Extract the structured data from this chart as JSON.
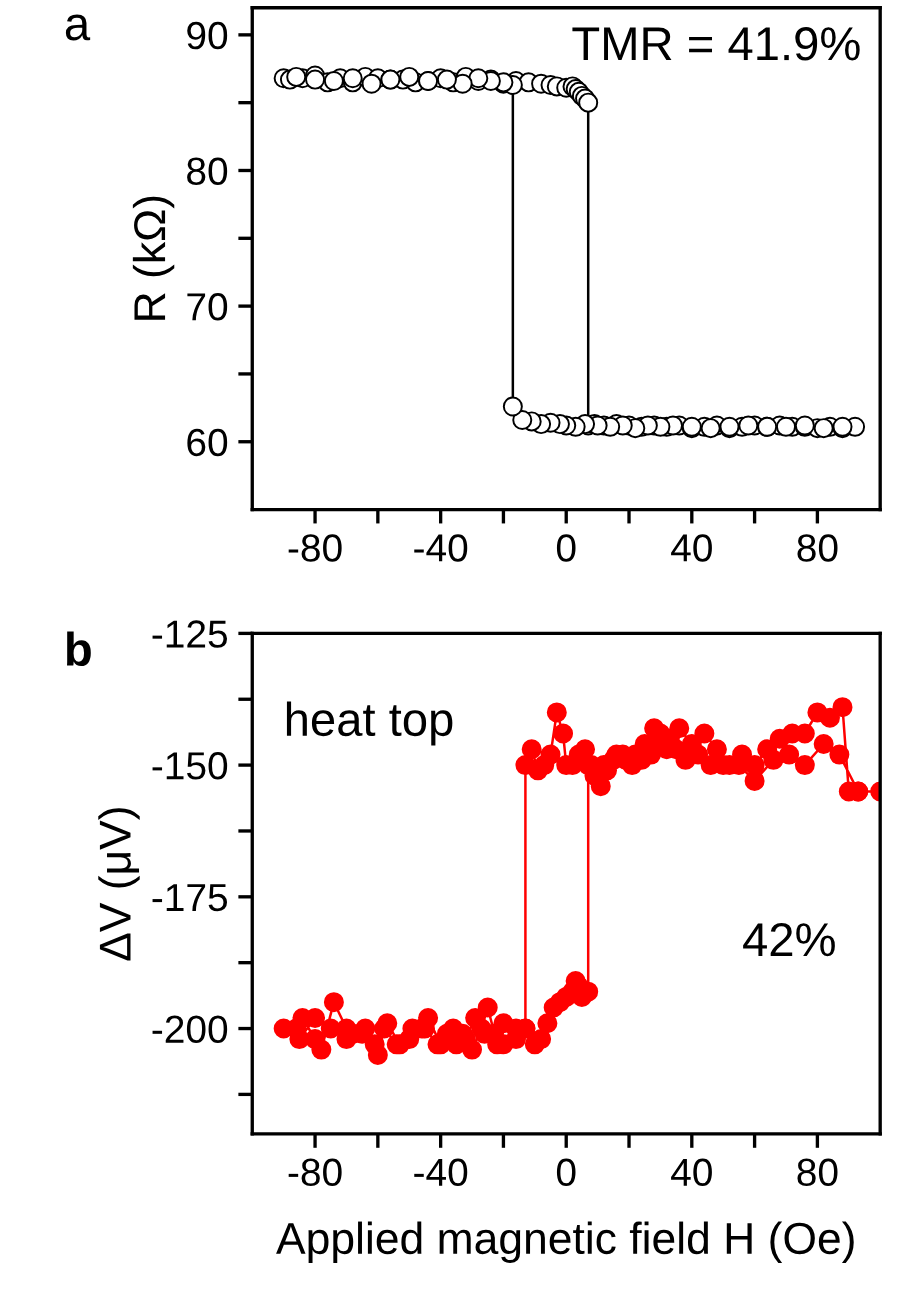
{
  "chart_data": [
    {
      "type": "line",
      "title": "a",
      "ylabel": "R (kΩ)",
      "annotations": [
        "TMR = 41.9%"
      ],
      "marker": "circle",
      "line_style": "solid",
      "grid": false,
      "legend": false,
      "xlim": [
        -100,
        100
      ],
      "ylim": [
        55,
        92
      ],
      "xticks": [
        -80,
        {
          "value": -60,
          "label": null
        },
        -40,
        {
          "value": -20,
          "label": null
        },
        0,
        {
          "value": 20,
          "label": null
        },
        40,
        {
          "value": 60,
          "label": null
        },
        80
      ],
      "yticks": [
        60,
        {
          "value": 65,
          "label": null
        },
        70,
        {
          "value": 75,
          "label": null
        },
        80,
        {
          "value": 85,
          "label": null
        },
        90
      ],
      "series": [
        {
          "color": "#000000",
          "x": [
            -90,
            -88,
            -84,
            -80,
            -76,
            -72,
            -68,
            -64,
            -60,
            -56,
            -52,
            -48,
            -44,
            -40,
            -36,
            -32,
            -28,
            -24,
            -20,
            -16,
            -12,
            -8,
            -5,
            -3,
            0,
            2,
            3,
            4,
            5,
            6,
            7,
            7,
            9,
            12,
            16,
            20,
            24,
            28,
            32,
            36,
            40,
            44,
            48,
            52,
            56,
            60,
            64,
            68,
            72,
            76,
            80,
            84,
            88,
            92,
            88,
            82,
            76,
            70,
            64,
            58,
            52,
            46,
            40,
            34,
            30,
            26,
            22,
            18,
            14,
            10,
            6,
            3,
            0,
            -2,
            -5,
            -8,
            -11,
            -14,
            -17,
            -17,
            -20,
            -24,
            -28,
            -33,
            -38,
            -44,
            -50,
            -56,
            -62,
            -68,
            -74,
            -80,
            -86
          ],
          "values": [
            86.8,
            86.7,
            86.8,
            87.0,
            86.5,
            86.8,
            86.5,
            86.9,
            86.8,
            86.7,
            86.7,
            86.5,
            86.6,
            86.8,
            86.5,
            86.9,
            86.6,
            86.7,
            86.4,
            86.6,
            86.5,
            86.4,
            86.3,
            86.2,
            86.1,
            86.2,
            86.0,
            85.8,
            85.5,
            85.3,
            85.0,
            61.2,
            61.3,
            61.2,
            61.3,
            61.2,
            61.1,
            61.2,
            61.1,
            61.2,
            61.0,
            61.1,
            61.2,
            61.0,
            61.1,
            61.2,
            61.1,
            61.2,
            61.1,
            61.1,
            61.0,
            61.1,
            61.0,
            61.1,
            61.1,
            61.0,
            61.2,
            61.1,
            61.1,
            61.2,
            61.1,
            61.0,
            61.1,
            61.2,
            61.1,
            61.2,
            61.0,
            61.2,
            61.1,
            61.2,
            61.3,
            61.1,
            61.2,
            61.3,
            61.4,
            61.3,
            61.5,
            61.6,
            62.6,
            86.3,
            86.5,
            86.6,
            86.8,
            86.4,
            86.7,
            86.6,
            86.9,
            86.7,
            86.4,
            86.8,
            86.6,
            86.7,
            86.9
          ]
        }
      ]
    },
    {
      "type": "line",
      "title": "b",
      "ylabel": "ΔV (μV)",
      "xlabel": "Applied magnetic field H (Oe)",
      "annotations": [
        "heat top",
        "42%"
      ],
      "marker": "circle",
      "line_style": "solid",
      "grid": false,
      "legend": false,
      "xlim": [
        -100,
        100
      ],
      "ylim": [
        -220,
        -125
      ],
      "xticks": [
        -80,
        {
          "value": -60,
          "label": null
        },
        -40,
        {
          "value": -20,
          "label": null
        },
        0,
        {
          "value": 20,
          "label": null
        },
        40,
        {
          "value": 60,
          "label": null
        },
        80
      ],
      "yticks": [
        -125,
        {
          "value": -137.5,
          "label": null
        },
        -150,
        {
          "value": -162.5,
          "label": null
        },
        -175,
        {
          "value": -187.5,
          "label": null
        },
        -200,
        {
          "value": -212.5,
          "label": null
        }
      ],
      "series": [
        {
          "color": "#ff0000",
          "x": [
            -90,
            -86,
            -84,
            -80,
            -78,
            -74,
            -70,
            -68,
            -64,
            -60,
            -58,
            -54,
            -50,
            -46,
            -44,
            -40,
            -36,
            -33,
            -30,
            -27,
            -25,
            -22,
            -20,
            -16,
            -13,
            -10,
            -8,
            -6,
            -4,
            -2,
            0,
            2,
            3,
            4,
            5,
            6,
            7,
            7,
            9,
            11,
            13,
            16,
            19,
            22,
            25,
            28,
            30,
            33,
            36,
            40,
            44,
            48,
            52,
            56,
            60,
            64,
            68,
            72,
            76,
            80,
            84,
            88,
            90,
            93,
            100,
            93,
            87,
            82,
            76,
            71,
            66,
            60,
            55,
            50,
            46,
            42,
            38,
            35,
            32,
            29,
            27,
            24,
            21,
            18,
            15,
            12,
            10,
            8,
            6,
            4,
            2,
            0,
            -1,
            -3,
            -5,
            -7,
            -9,
            -11,
            -13,
            -13,
            -16,
            -20,
            -23,
            -26,
            -29,
            -32,
            -35,
            -38,
            -41,
            -45,
            -49,
            -53,
            -57,
            -61,
            -65,
            -70,
            -75,
            -80,
            -85
          ],
          "values": [
            -200,
            -200,
            -198,
            -202,
            -204,
            -195,
            -200,
            -201,
            -200,
            -205,
            -200,
            -203,
            -202,
            -200,
            -198,
            -203,
            -200,
            -201,
            -204,
            -200,
            -196,
            -203,
            -199,
            -200,
            -200,
            -203,
            -202,
            -199,
            -196,
            -195,
            -194,
            -193,
            -191,
            -192,
            -194,
            -193,
            -193,
            -150,
            -152,
            -154,
            -151,
            -148,
            -149,
            -148,
            -146,
            -143,
            -144,
            -145,
            -143,
            -146,
            -144,
            -147,
            -150,
            -148,
            -150,
            -147,
            -145,
            -144,
            -144,
            -140,
            -141,
            -139,
            -155,
            -155,
            -155,
            -155,
            -148,
            -146,
            -150,
            -148,
            -149,
            -153,
            -150,
            -150,
            -150,
            -148,
            -149,
            -147,
            -147,
            -146,
            -148,
            -149,
            -150,
            -148,
            -149,
            -150,
            -152,
            -150,
            -147,
            -148,
            -150,
            -150,
            -144,
            -140,
            -148,
            -150,
            -151,
            -147,
            -150,
            -200,
            -202,
            -203,
            -201,
            -201,
            -198,
            -202,
            -203,
            -201,
            -203,
            -200,
            -200,
            -203,
            -199,
            -203,
            -201,
            -202,
            -200,
            -198,
            -202
          ]
        }
      ]
    }
  ]
}
